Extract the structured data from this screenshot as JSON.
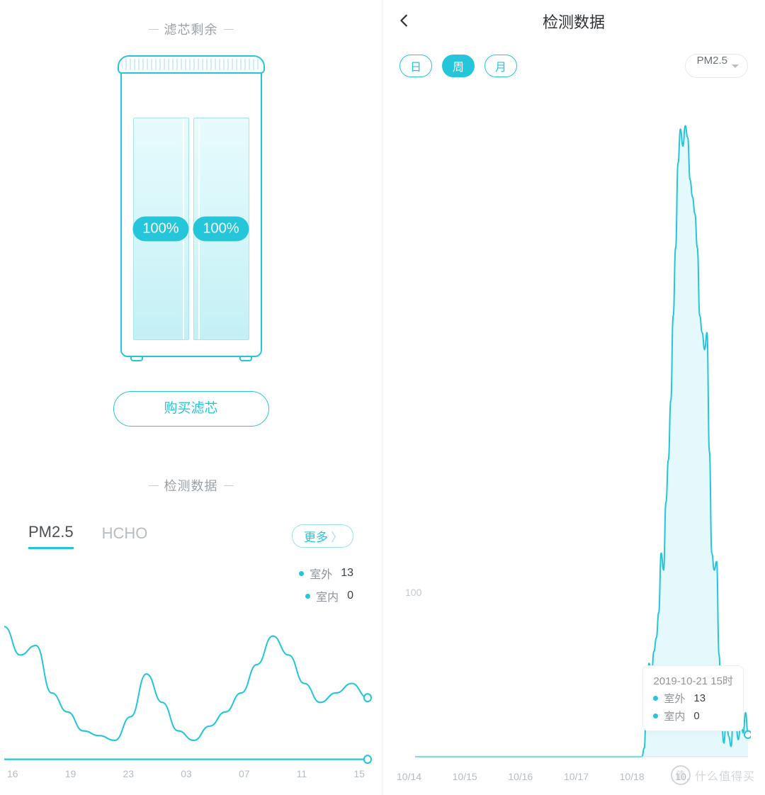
{
  "colors": {
    "accent": "#26c6da",
    "muted": "#9aa1a6",
    "text": "#2d3135",
    "grid": "#eef1f3",
    "bg": "#ffffff"
  },
  "left": {
    "filter_section_title": "滤芯剩余",
    "filter_left_pct": "100%",
    "filter_right_pct": "100%",
    "buy_button_label": "购买滤芯",
    "data_section_title": "检测数据",
    "tabs": {
      "pm25": "PM2.5",
      "hcho": "HCHO",
      "active": "pm25"
    },
    "more_label": "更多",
    "legend": {
      "outdoor_label": "室外",
      "outdoor_value": "13",
      "indoor_label": "室内",
      "indoor_value": "0"
    },
    "chart": {
      "type": "line",
      "x_labels": [
        "16",
        "19",
        "23",
        "03",
        "07",
        "11",
        "15"
      ],
      "outdoor_series": [
        28,
        22,
        24,
        14,
        10,
        6,
        5,
        4,
        9,
        18,
        12,
        6,
        4,
        7,
        10,
        14,
        20,
        26,
        22,
        16,
        12,
        14,
        16,
        13
      ],
      "ylim": [
        0,
        30
      ],
      "indoor_flat_value": 0,
      "line_color": "#26c6da",
      "line_width": 2,
      "end_marker": true
    }
  },
  "right": {
    "header_title": "检测数据",
    "segments": {
      "day": "日",
      "week": "周",
      "month": "月",
      "active": "week"
    },
    "metric_dropdown_label": "PM2.5",
    "y_ref_label": "100",
    "y_ref_value": 100,
    "chart": {
      "type": "area",
      "x_labels": [
        "10/14",
        "10/15",
        "10/16",
        "10/17",
        "10/18",
        "10.",
        "",
        ""
      ],
      "ylim": [
        0,
        380
      ],
      "series": [
        0,
        0,
        0,
        0,
        0,
        0,
        0,
        0,
        0,
        0,
        0,
        0,
        0,
        0,
        0,
        0,
        0,
        0,
        0,
        0,
        0,
        0,
        0,
        0,
        0,
        0,
        0,
        0,
        0,
        0,
        0,
        0,
        0,
        0,
        0,
        0,
        0,
        0,
        0,
        0,
        0,
        0,
        0,
        0,
        0,
        0,
        0,
        0,
        0,
        0,
        0,
        0,
        0,
        0,
        0,
        0,
        0,
        0,
        0,
        0,
        0,
        0,
        0,
        0,
        0,
        0,
        0,
        0,
        0,
        0,
        0,
        0,
        0,
        0,
        0,
        0,
        0,
        0,
        0,
        0,
        0,
        0,
        0,
        0,
        0,
        0,
        0,
        0,
        0,
        0,
        0,
        0,
        0,
        0,
        0,
        5,
        40,
        55,
        48,
        62,
        70,
        85,
        120,
        110,
        150,
        175,
        210,
        260,
        300,
        350,
        370,
        360,
        372,
        365,
        340,
        330,
        320,
        300,
        260,
        250,
        240,
        250,
        180,
        120,
        110,
        115,
        60,
        20,
        8,
        25,
        12,
        6,
        30,
        18,
        10,
        22,
        14,
        26,
        13
      ],
      "fill_color": "rgba(38,198,218,.12)",
      "line_color": "#26c6da",
      "line_width": 2
    },
    "tooltip": {
      "timestamp": "2019-10-21 15时",
      "outdoor_label": "室外",
      "outdoor_value": "13",
      "indoor_label": "室内",
      "indoor_value": "0"
    }
  },
  "watermark_text": "什么值得买"
}
